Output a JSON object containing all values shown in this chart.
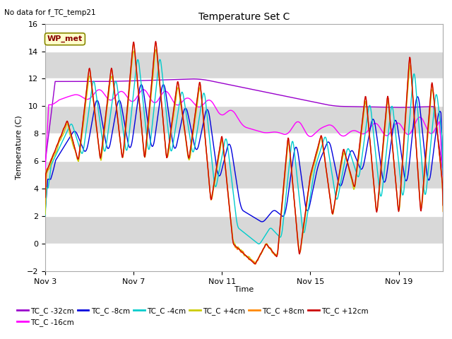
{
  "title": "Temperature Set C",
  "top_left_note": "No data for f_TC_temp21",
  "ylabel": "Temperature (C)",
  "xlabel": "Time",
  "xlim_days": [
    0,
    18
  ],
  "ylim": [
    -2,
    16
  ],
  "yticks": [
    -2,
    0,
    2,
    4,
    6,
    8,
    10,
    12,
    14,
    16
  ],
  "xtick_labels": [
    "Nov 3",
    "Nov 7",
    "Nov 11",
    "Nov 15",
    "Nov 19"
  ],
  "xtick_positions": [
    0,
    4,
    8,
    12,
    16
  ],
  "background_color": "#ffffff",
  "plot_bg_color": "#d8d8d8",
  "grid_color": "#ffffff",
  "legend_box_color": "#ffffcc",
  "legend_box_edge": "#999900",
  "wp_met_label": "WP_met",
  "series": [
    {
      "label": "TC_C -32cm",
      "color": "#9900cc"
    },
    {
      "label": "TC_C -16cm",
      "color": "#ff00ff"
    },
    {
      "label": "TC_C -8cm",
      "color": "#0000dd"
    },
    {
      "label": "TC_C -4cm",
      "color": "#00cccc"
    },
    {
      "label": "TC_C +4cm",
      "color": "#cccc00"
    },
    {
      "label": "TC_C +8cm",
      "color": "#ff8800"
    },
    {
      "label": "TC_C +12cm",
      "color": "#cc0000"
    }
  ]
}
